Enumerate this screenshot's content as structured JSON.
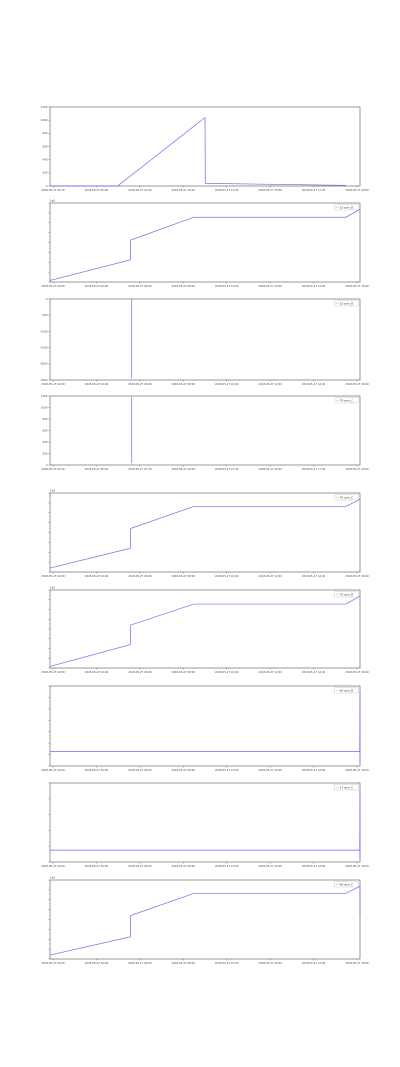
{
  "colors": {
    "line": "#6b6bf2",
    "axis": "#555555",
    "background": "#ffffff"
  },
  "chart_data": [
    {
      "type": "line",
      "title": "",
      "xlabel": "",
      "ylabel": "",
      "legend": "",
      "ylim": [
        0,
        1200
      ],
      "yticks": [
        "0",
        "200",
        "400",
        "600",
        "800",
        "1000",
        "1200"
      ],
      "xticks": [
        "2018-05-27 02:30",
        "2018-05-27 05:00",
        "2018-05-27 07:30",
        "2018-05-27 10:00",
        "2018-05-27 12:30",
        "2018-05-27 15:00",
        "2018-05-27 17:30",
        "2018-05-27 20:00"
      ],
      "series": [
        {
          "name": "",
          "points": [
            [
              0,
              0
            ],
            [
              2.4,
              0
            ],
            [
              5.5,
              1040
            ],
            [
              5.51,
              40
            ],
            [
              10.5,
              10
            ]
          ]
        }
      ]
    },
    {
      "type": "line",
      "legend": "— 15 rpm_B",
      "offset_label": "1e8",
      "ylim": [
        0,
        1
      ],
      "yticks": [
        "",
        "",
        "",
        "",
        "",
        "",
        "",
        "",
        ""
      ],
      "xticks": [
        "2018-05-27 02:00",
        "2018-05-27 04:00",
        "2018-05-27 06:00",
        "2018-05-27 08:00",
        "2018-05-27 10:00",
        "2018-05-27 12:00",
        "2018-05-27 14:00",
        "2018-05-27 16:00"
      ],
      "series": [
        {
          "name": "15 rpm_B",
          "points": [
            [
              0,
              0.02
            ],
            [
              2.85,
              0.28
            ],
            [
              2.86,
              0.53
            ],
            [
              5.1,
              0.82
            ],
            [
              10.5,
              0.82
            ],
            [
              11.0,
              0.92
            ]
          ]
        }
      ]
    },
    {
      "type": "line",
      "legend": "— 15 rpm_B",
      "ylim": [
        -2500,
        0
      ],
      "yticks": [
        "-2500",
        "-2000",
        "-1500",
        "-1000",
        "-500",
        "0"
      ],
      "xticks": [
        "2018-05-27 02:00",
        "2018-05-27 04:00",
        "2018-05-27 06:00",
        "2018-05-27 08:00",
        "2018-05-27 10:00",
        "2018-05-27 12:00",
        "2018-05-27 14:00",
        "2018-05-27 16:00"
      ],
      "series": [
        {
          "name": "15 rpm_B",
          "points": [
            [
              2.9,
              0
            ],
            [
              2.9,
              -2450
            ]
          ]
        }
      ]
    },
    {
      "type": "line",
      "legend": "— 70 rpm_C",
      "ylim": [
        0,
        1200
      ],
      "yticks": [
        "0",
        "200",
        "400",
        "600",
        "800",
        "1000",
        "1200"
      ],
      "xticks": [
        "2018-05-27 02:30",
        "2018-05-27 05:00",
        "2018-05-27 07:30",
        "2018-05-27 10:00",
        "2018-05-27 12:30",
        "2018-05-27 15:00",
        "2018-05-27 17:30",
        "2018-05-27 20:00"
      ],
      "series": [
        {
          "name": "70 rpm_C",
          "points": [
            [
              2.9,
              1180
            ],
            [
              2.9,
              30
            ]
          ]
        }
      ]
    },
    {
      "type": "line",
      "legend": "— 70 rpm_C",
      "offset_label": "1e8",
      "ylim": [
        0,
        1
      ],
      "yticks": [
        "",
        "",
        "",
        "",
        "",
        "",
        "",
        "",
        ""
      ],
      "xticks": [
        "2018-05-27 02:00",
        "2018-05-27 04:00",
        "2018-05-27 06:00",
        "2018-05-27 08:00",
        "2018-05-27 10:00",
        "2018-05-27 12:00",
        "2018-05-27 14:00",
        "2018-05-27 16:00"
      ],
      "series": [
        {
          "name": "70 rpm_C",
          "points": [
            [
              0,
              0.05
            ],
            [
              2.85,
              0.3
            ],
            [
              2.86,
              0.55
            ],
            [
              5.1,
              0.83
            ],
            [
              10.5,
              0.83
            ],
            [
              11.0,
              0.92
            ]
          ]
        }
      ]
    },
    {
      "type": "line",
      "legend": "— 70 rpm_B",
      "offset_label": "1e8",
      "ylim": [
        0,
        1
      ],
      "yticks": [
        "",
        "",
        "",
        "",
        "",
        "",
        "",
        "",
        ""
      ],
      "xticks": [
        "2018-05-27 02:00",
        "2018-05-27 04:00",
        "2018-05-27 06:00",
        "2018-05-27 08:00",
        "2018-05-27 10:00",
        "2018-05-27 12:00",
        "2018-05-27 14:00",
        "2018-05-27 16:00"
      ],
      "series": [
        {
          "name": "70 rpm_B",
          "points": [
            [
              0,
              0.02
            ],
            [
              2.85,
              0.3
            ],
            [
              2.86,
              0.55
            ],
            [
              5.1,
              0.82
            ],
            [
              10.5,
              0.82
            ],
            [
              11.0,
              0.92
            ]
          ]
        }
      ]
    },
    {
      "type": "line",
      "legend": "— 90 rpm_B",
      "ylim": [
        0,
        1
      ],
      "yticks": [
        "",
        "",
        "",
        "",
        "",
        "",
        "",
        ""
      ],
      "xticks": [
        "2018-05-27 02:00",
        "2018-05-27 04:00",
        "2018-05-27 06:00",
        "2018-05-27 08:00",
        "2018-05-27 10:00",
        "2018-05-27 12:00",
        "2018-05-27 14:00",
        "2018-05-27 16:00"
      ],
      "series": [
        {
          "name": "90 rpm_B",
          "points": [
            [
              0,
              0.18
            ],
            [
              10.99,
              0.18
            ],
            [
              11.0,
              0.92
            ],
            [
              11.0,
              0.05
            ]
          ]
        }
      ]
    },
    {
      "type": "line",
      "legend": "— 17 rpm_C",
      "ylim": [
        0,
        1
      ],
      "yticks": [
        "",
        "",
        "",
        "",
        "",
        ""
      ],
      "xticks": [
        "2018-05-27 02:00",
        "2018-05-27 04:00",
        "2018-05-27 06:00",
        "2018-05-27 08:00",
        "2018-05-27 10:00",
        "2018-05-27 12:00",
        "2018-05-27 14:00",
        "2018-05-27 16:00"
      ],
      "series": [
        {
          "name": "17 rpm_C",
          "points": [
            [
              0,
              0.15
            ],
            [
              10.99,
              0.15
            ],
            [
              11.0,
              0.92
            ],
            [
              11.0,
              0.05
            ]
          ]
        }
      ]
    },
    {
      "type": "line",
      "legend": "— 90 rpm_C",
      "offset_label": "1e8",
      "ylim": [
        0,
        1
      ],
      "yticks": [
        "",
        "",
        "",
        "",
        "",
        "",
        "",
        "",
        ""
      ],
      "xticks": [
        "2018-05-27 02:00",
        "2018-05-27 04:00",
        "2018-05-27 06:00",
        "2018-05-27 08:00",
        "2018-05-27 10:00",
        "2018-05-27 12:00",
        "2018-05-27 14:00",
        "2018-05-27 16:00"
      ],
      "series": [
        {
          "name": "90 rpm_C",
          "points": [
            [
              0,
              0.05
            ],
            [
              2.85,
              0.28
            ],
            [
              2.86,
              0.55
            ],
            [
              5.1,
              0.83
            ],
            [
              10.5,
              0.83
            ],
            [
              11.0,
              0.92
            ],
            [
              11.0,
              0.55
            ]
          ]
        }
      ]
    }
  ]
}
